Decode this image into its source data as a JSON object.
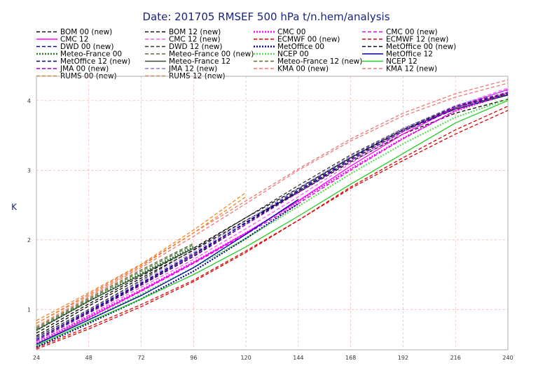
{
  "chart_data": {
    "type": "line",
    "title": "Date: 201705 RMSEF 500 hPa t/n.hem/analysis",
    "xlabel": "",
    "ylabel": "K",
    "xlim": [
      24,
      240
    ],
    "ylim": [
      0.42,
      4.35
    ],
    "x_ticks": [
      24,
      48,
      72,
      96,
      120,
      144,
      168,
      192,
      216,
      240
    ],
    "y_ticks": [
      1,
      2,
      3,
      4
    ],
    "grid": true,
    "legend_position": "top",
    "series": [
      {
        "name": "BOM 00 (new)",
        "color": "#000000",
        "style": "dashed",
        "x": [
          24,
          48,
          72,
          96,
          120,
          144,
          168,
          192,
          216,
          240
        ],
        "y": [
          0.62,
          1.05,
          1.45,
          1.85,
          2.28,
          2.68,
          3.12,
          3.52,
          3.82,
          4.02
        ]
      },
      {
        "name": "BOM 12 (new)",
        "color": "#000000",
        "style": "dashed",
        "x": [
          24,
          48,
          72,
          96,
          120,
          144,
          168,
          192,
          216,
          240
        ],
        "y": [
          0.66,
          1.08,
          1.48,
          1.88,
          2.32,
          2.74,
          3.18,
          3.58,
          3.88,
          4.08
        ]
      },
      {
        "name": "CMC 00",
        "color": "#ff00ff",
        "style": "dotted",
        "x": [
          24,
          48,
          72,
          96,
          120,
          144,
          168,
          192,
          216,
          240
        ],
        "y": [
          0.52,
          0.9,
          1.28,
          1.68,
          2.1,
          2.55,
          3.02,
          3.46,
          3.85,
          4.1
        ]
      },
      {
        "name": "CMC 00 (new)",
        "color": "#dd00dd",
        "style": "dashed",
        "x": [
          24,
          48,
          72,
          96,
          120,
          144,
          168,
          192,
          216,
          240
        ],
        "y": [
          0.5,
          0.88,
          1.26,
          1.66,
          2.08,
          2.52,
          3.0,
          3.45,
          3.86,
          4.12
        ]
      },
      {
        "name": "CMC 12",
        "color": "#ff00ff",
        "style": "solid",
        "x": [
          24,
          48,
          72,
          96,
          120,
          144,
          168,
          192,
          216,
          240
        ],
        "y": [
          0.5,
          0.88,
          1.27,
          1.67,
          2.1,
          2.56,
          3.06,
          3.52,
          3.9,
          4.16
        ]
      },
      {
        "name": "CMC 12 (new)",
        "color": "#ff55ff",
        "style": "dashed",
        "x": [
          24,
          48,
          72,
          96,
          120,
          144,
          168,
          192,
          216,
          240
        ],
        "y": [
          0.53,
          0.92,
          1.32,
          1.72,
          2.16,
          2.62,
          3.1,
          3.55,
          3.92,
          4.18
        ]
      },
      {
        "name": "ECMWF 00 (new)",
        "color": "#dd0000",
        "style": "dashed",
        "x": [
          24,
          48,
          72,
          96,
          120,
          144,
          168,
          192,
          216,
          240
        ],
        "y": [
          0.45,
          0.75,
          1.07,
          1.42,
          1.84,
          2.28,
          2.76,
          3.18,
          3.58,
          3.92
        ]
      },
      {
        "name": "ECMWF 12 (new)",
        "color": "#dd0000",
        "style": "dashed",
        "x": [
          24,
          48,
          72,
          96,
          120,
          144,
          168,
          192,
          216,
          240
        ],
        "y": [
          0.43,
          0.72,
          1.04,
          1.4,
          1.82,
          2.28,
          2.74,
          3.14,
          3.52,
          3.86
        ]
      },
      {
        "name": "DWD 00 (new)",
        "color": "#000080",
        "style": "dashed",
        "x": [
          24,
          48,
          72,
          96,
          120,
          144,
          168,
          192,
          216,
          240
        ],
        "y": [
          0.58,
          0.98,
          1.38,
          1.8,
          2.24,
          2.7,
          3.14,
          3.56,
          3.88,
          4.08
        ]
      },
      {
        "name": "DWD 12 (new)",
        "color": "#333333",
        "style": "dashed",
        "x": [
          24,
          48,
          72,
          96,
          120,
          144,
          168,
          192,
          216,
          240
        ],
        "y": [
          0.6,
          1.0,
          1.42,
          1.86,
          2.32,
          2.78,
          3.22,
          3.6,
          3.9,
          4.1
        ]
      },
      {
        "name": "MetOffice 00",
        "color": "#00008b",
        "style": "dotted",
        "x": [
          24,
          48,
          72,
          96,
          120,
          144
        ],
        "y": [
          0.46,
          0.8,
          1.15,
          1.55,
          2.02,
          2.52
        ]
      },
      {
        "name": "MetOffice 00 (new)",
        "color": "#000033",
        "style": "dashed",
        "x": [
          24,
          48,
          72,
          96,
          120,
          144,
          168,
          192,
          216,
          240
        ],
        "y": [
          0.55,
          0.95,
          1.35,
          1.76,
          2.22,
          2.7,
          3.16,
          3.58,
          3.9,
          4.1
        ]
      },
      {
        "name": "Meteo-France 00",
        "color": "#2e7d32",
        "style": "dotted",
        "x": [
          24,
          48,
          72,
          96
        ],
        "y": [
          0.7,
          1.12,
          1.52,
          1.9
        ]
      },
      {
        "name": "Meteo-France 00 (new)",
        "color": "#556b2f",
        "style": "dashed",
        "x": [
          24,
          48,
          72,
          96
        ],
        "y": [
          0.72,
          1.14,
          1.55,
          1.93
        ]
      },
      {
        "name": "NCEP 00",
        "color": "#55dd55",
        "style": "dotted",
        "x": [
          24,
          48,
          72,
          96,
          120,
          144,
          168,
          192,
          216,
          240
        ],
        "y": [
          0.5,
          0.86,
          1.22,
          1.6,
          2.02,
          2.48,
          2.95,
          3.38,
          3.76,
          4.02
        ]
      },
      {
        "name": "MetOffice 12",
        "color": "#0000aa",
        "style": "solid",
        "x": [
          24,
          48,
          72,
          96,
          120,
          144
        ],
        "y": [
          0.5,
          0.85,
          1.2,
          1.6,
          2.08,
          2.58
        ]
      },
      {
        "name": "MetOffice 12 (new)",
        "color": "#000066",
        "style": "dashed",
        "x": [
          24,
          48,
          72,
          96,
          120,
          144,
          168,
          192,
          216,
          240
        ],
        "y": [
          0.57,
          0.97,
          1.37,
          1.78,
          2.25,
          2.72,
          3.18,
          3.6,
          3.92,
          4.12
        ]
      },
      {
        "name": "Meteo-France 12",
        "color": "#2f4f2f",
        "style": "solid",
        "x": [
          24,
          48,
          72,
          96
        ],
        "y": [
          0.7,
          1.12,
          1.5,
          1.88
        ]
      },
      {
        "name": "Meteo-France 12 (new)",
        "color": "#556b2f",
        "style": "dashed",
        "x": [
          24,
          48,
          72,
          96
        ],
        "y": [
          0.74,
          1.16,
          1.57,
          1.95
        ]
      },
      {
        "name": "NCEP 12",
        "color": "#22cc22",
        "style": "solid",
        "x": [
          24,
          48,
          72,
          96,
          120,
          144,
          168,
          192,
          216,
          240
        ],
        "y": [
          0.48,
          0.82,
          1.15,
          1.5,
          1.9,
          2.34,
          2.8,
          3.24,
          3.68,
          4.0
        ]
      },
      {
        "name": "JMA 00 (new)",
        "color": "#9400d3",
        "style": "dashed",
        "x": [
          24,
          48,
          72,
          96,
          120,
          144,
          168,
          192,
          216,
          240
        ],
        "y": [
          0.55,
          0.96,
          1.36,
          1.78,
          2.22,
          2.68,
          3.14,
          3.56,
          3.9,
          4.12
        ]
      },
      {
        "name": "JMA 12 (new)",
        "color": "#9370db",
        "style": "dashed",
        "x": [
          24,
          48,
          72,
          96,
          120,
          144,
          168,
          192,
          216,
          240
        ],
        "y": [
          0.58,
          0.99,
          1.4,
          1.82,
          2.27,
          2.74,
          3.2,
          3.6,
          3.93,
          4.15
        ]
      },
      {
        "name": "KMA 00 (new)",
        "color": "#ee7777",
        "style": "dashed",
        "x": [
          24,
          48,
          72,
          96,
          120,
          144,
          168,
          192,
          216,
          240
        ],
        "y": [
          0.76,
          1.18,
          1.6,
          2.05,
          2.52,
          3.0,
          3.42,
          3.78,
          4.05,
          4.25
        ]
      },
      {
        "name": "KMA 12 (new)",
        "color": "#ee7777",
        "style": "dashed",
        "x": [
          24,
          48,
          72,
          96,
          120,
          144,
          168,
          192,
          216,
          240
        ],
        "y": [
          0.8,
          1.22,
          1.64,
          2.1,
          2.56,
          3.02,
          3.45,
          3.82,
          4.1,
          4.3
        ]
      },
      {
        "name": "RUMS 00 (new)",
        "color": "#ee8822",
        "style": "dashed",
        "x": [
          24,
          48,
          72,
          96,
          120
        ],
        "y": [
          0.84,
          1.24,
          1.65,
          2.14,
          2.68
        ]
      },
      {
        "name": "RUMS 12 (new)",
        "color": "#ee8822",
        "style": "dashed",
        "x": [
          24,
          48,
          72,
          96,
          120
        ],
        "y": [
          0.8,
          1.2,
          1.62,
          2.1,
          2.62
        ]
      }
    ]
  }
}
